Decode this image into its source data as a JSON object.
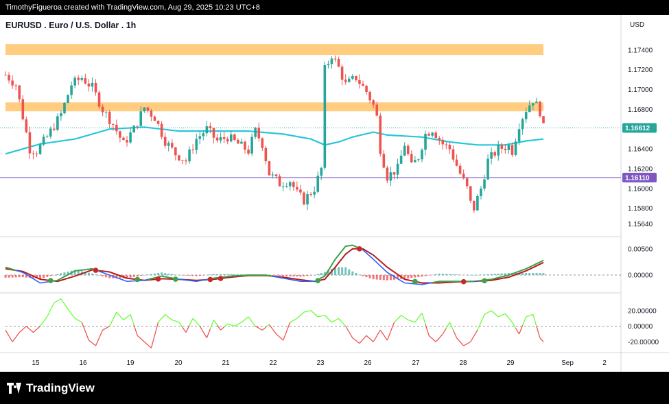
{
  "header": {
    "credit": "TimothyFigueroa created with TradingView.com, Aug 29, 2025 10:23 UTC+8"
  },
  "footer": {
    "brand": "TradingView"
  },
  "colors": {
    "up": "#26a69a",
    "down": "#ef5350",
    "ma": "#26c6da",
    "zone": "#ffcc80",
    "level": "#7e57c2",
    "macd_fast": "#2962ff",
    "macd_slow": "#b71c1c",
    "osc_up": "#66ff33",
    "osc_down": "#ef5350",
    "osc_line": "#43a047"
  },
  "chart_data": [
    {
      "type": "candlestick",
      "title": "EURUSD . Euro / U.S. Dollar . 1h",
      "currency_label": "USD",
      "ylim": [
        1.1552,
        1.176
      ],
      "y_ticks": [
        "1.17400",
        "1.17200",
        "1.17000",
        "1.16800",
        "1.16400",
        "1.16200",
        "1.16000",
        "1.15800",
        "1.15640"
      ],
      "last_price": "1.16612",
      "horizontal_level": "1.16110",
      "resistance_zones": [
        [
          1.1735,
          1.1746
        ],
        [
          1.1678,
          1.1687
        ]
      ],
      "x_labels": [
        "15",
        "16",
        "19",
        "20",
        "21",
        "22",
        "23",
        "26",
        "27",
        "28",
        "29",
        "Sep",
        "2"
      ],
      "close_path": [
        [
          0,
          1.1715
        ],
        [
          3,
          1.1705
        ],
        [
          7,
          1.164
        ],
        [
          9,
          1.1638
        ],
        [
          12,
          1.1652
        ],
        [
          16,
          1.1675
        ],
        [
          19,
          1.1705
        ],
        [
          22,
          1.1712
        ],
        [
          25,
          1.1702
        ],
        [
          28,
          1.168
        ],
        [
          31,
          1.1665
        ],
        [
          34,
          1.1645
        ],
        [
          37,
          1.166
        ],
        [
          40,
          1.1682
        ],
        [
          43,
          1.1672
        ],
        [
          46,
          1.1648
        ],
        [
          49,
          1.1635
        ],
        [
          52,
          1.1628
        ],
        [
          55,
          1.165
        ],
        [
          58,
          1.166
        ],
        [
          61,
          1.1648
        ],
        [
          64,
          1.1652
        ],
        [
          67,
          1.1645
        ],
        [
          70,
          1.1638
        ],
        [
          72,
          1.1658
        ],
        [
          74,
          1.1645
        ],
        [
          76,
          1.1615
        ],
        [
          79,
          1.1605
        ],
        [
          82,
          1.1608
        ],
        [
          84,
          1.1595
        ],
        [
          86,
          1.1588
        ],
        [
          89,
          1.16
        ],
        [
          91,
          1.162
        ],
        [
          92,
          1.172
        ],
        [
          94,
          1.1735
        ],
        [
          96,
          1.1722
        ],
        [
          98,
          1.1705
        ],
        [
          101,
          1.1712
        ],
        [
          104,
          1.1698
        ],
        [
          106,
          1.1684
        ],
        [
          107,
          1.1672
        ],
        [
          108,
          1.164
        ],
        [
          110,
          1.1612
        ],
        [
          113,
          1.162
        ],
        [
          115,
          1.1645
        ],
        [
          117,
          1.1622
        ],
        [
          119,
          1.1632
        ],
        [
          121,
          1.1655
        ],
        [
          123,
          1.166
        ],
        [
          126,
          1.1645
        ],
        [
          128,
          1.164
        ],
        [
          131,
          1.1615
        ],
        [
          133,
          1.16
        ],
        [
          134,
          1.1585
        ],
        [
          135,
          1.158
        ],
        [
          137,
          1.16
        ],
        [
          139,
          1.1628
        ],
        [
          142,
          1.164
        ],
        [
          145,
          1.1643
        ],
        [
          146,
          1.1638
        ],
        [
          148,
          1.1665
        ],
        [
          150,
          1.168
        ],
        [
          152,
          1.169
        ],
        [
          154,
          1.1678
        ],
        [
          155,
          1.1661
        ]
      ],
      "moving_average_path": [
        [
          0,
          1.1635
        ],
        [
          10,
          1.1645
        ],
        [
          20,
          1.165
        ],
        [
          30,
          1.166
        ],
        [
          40,
          1.1662
        ],
        [
          50,
          1.1658
        ],
        [
          60,
          1.1658
        ],
        [
          70,
          1.1658
        ],
        [
          80,
          1.1655
        ],
        [
          88,
          1.165
        ],
        [
          92,
          1.1644
        ],
        [
          96,
          1.1647
        ],
        [
          100,
          1.1652
        ],
        [
          106,
          1.1657
        ],
        [
          110,
          1.1654
        ],
        [
          120,
          1.1652
        ],
        [
          128,
          1.1647
        ],
        [
          136,
          1.1644
        ],
        [
          144,
          1.1644
        ],
        [
          150,
          1.1648
        ],
        [
          155,
          1.165
        ]
      ]
    },
    {
      "type": "macd",
      "ylim": [
        -0.003,
        0.0072
      ],
      "y_ticks": [
        "0.00500",
        "0.00000"
      ],
      "fast_line": [
        [
          0,
          0.0015
        ],
        [
          5,
          0.0005
        ],
        [
          10,
          -0.0015
        ],
        [
          15,
          -0.001
        ],
        [
          20,
          0.0008
        ],
        [
          25,
          0.0012
        ],
        [
          30,
          0.0
        ],
        [
          35,
          -0.0012
        ],
        [
          40,
          -0.001
        ],
        [
          45,
          -0.0002
        ],
        [
          50,
          -0.0008
        ],
        [
          55,
          -0.0012
        ],
        [
          60,
          -0.0006
        ],
        [
          65,
          -0.0002
        ],
        [
          70,
          0.0
        ],
        [
          75,
          0.0
        ],
        [
          80,
          -0.0006
        ],
        [
          85,
          -0.0012
        ],
        [
          89,
          -0.0012
        ],
        [
          92,
          -0.0002
        ],
        [
          95,
          0.003
        ],
        [
          98,
          0.0055
        ],
        [
          100,
          0.0057
        ],
        [
          103,
          0.0048
        ],
        [
          106,
          0.003
        ],
        [
          110,
          0.0005
        ],
        [
          115,
          -0.0015
        ],
        [
          120,
          -0.0018
        ],
        [
          125,
          -0.0012
        ],
        [
          130,
          -0.0012
        ],
        [
          135,
          -0.0012
        ],
        [
          140,
          -0.0008
        ],
        [
          145,
          0.0
        ],
        [
          150,
          0.0012
        ],
        [
          155,
          0.0028
        ]
      ],
      "slow_line": [
        [
          0,
          0.0012
        ],
        [
          5,
          0.0007
        ],
        [
          10,
          -0.0008
        ],
        [
          15,
          -0.0012
        ],
        [
          20,
          -0.0002
        ],
        [
          25,
          0.001
        ],
        [
          30,
          0.0006
        ],
        [
          35,
          -0.0006
        ],
        [
          40,
          -0.001
        ],
        [
          45,
          -0.0007
        ],
        [
          50,
          -0.0008
        ],
        [
          55,
          -0.001
        ],
        [
          60,
          -0.0008
        ],
        [
          65,
          -0.0004
        ],
        [
          70,
          -0.0001
        ],
        [
          75,
          -0.0001
        ],
        [
          80,
          -0.0004
        ],
        [
          85,
          -0.0009
        ],
        [
          89,
          -0.0012
        ],
        [
          92,
          -0.0008
        ],
        [
          95,
          0.0015
        ],
        [
          98,
          0.004
        ],
        [
          100,
          0.005
        ],
        [
          103,
          0.005
        ],
        [
          106,
          0.0038
        ],
        [
          110,
          0.0015
        ],
        [
          115,
          -0.0008
        ],
        [
          120,
          -0.0015
        ],
        [
          125,
          -0.0015
        ],
        [
          130,
          -0.0013
        ],
        [
          135,
          -0.0012
        ],
        [
          140,
          -0.001
        ],
        [
          145,
          -0.0004
        ],
        [
          150,
          0.0008
        ],
        [
          155,
          0.0024
        ]
      ],
      "histogram": [
        [
          0,
          -0.0005
        ],
        [
          5,
          -0.0004
        ],
        [
          10,
          -0.0007
        ],
        [
          15,
          0.0002
        ],
        [
          20,
          0.001
        ],
        [
          25,
          0.0003
        ],
        [
          30,
          -0.0006
        ],
        [
          35,
          -0.0006
        ],
        [
          40,
          0.0
        ],
        [
          45,
          0.0005
        ],
        [
          50,
          0.0
        ],
        [
          55,
          -0.0002
        ],
        [
          60,
          0.0002
        ],
        [
          65,
          0.0002
        ],
        [
          70,
          0.0001
        ],
        [
          75,
          0.0001
        ],
        [
          80,
          -0.0002
        ],
        [
          85,
          -0.0003
        ],
        [
          89,
          0.0
        ],
        [
          92,
          0.0006
        ],
        [
          95,
          0.0015
        ],
        [
          98,
          0.0015
        ],
        [
          100,
          0.0007
        ],
        [
          103,
          -0.0002
        ],
        [
          106,
          -0.0008
        ],
        [
          110,
          -0.001
        ],
        [
          115,
          -0.0007
        ],
        [
          120,
          -0.0003
        ],
        [
          125,
          0.0003
        ],
        [
          130,
          0.0001
        ],
        [
          135,
          0.0
        ],
        [
          140,
          0.0002
        ],
        [
          145,
          0.0004
        ],
        [
          150,
          0.0004
        ],
        [
          155,
          0.0004
        ]
      ],
      "cross_points": [
        {
          "x": 13,
          "kind": "bull"
        },
        {
          "x": 26,
          "kind": "bear"
        },
        {
          "x": 38,
          "kind": "bull"
        },
        {
          "x": 44,
          "kind": "bear"
        },
        {
          "x": 49,
          "kind": "bull"
        },
        {
          "x": 59,
          "kind": "bear"
        },
        {
          "x": 62,
          "kind": "bear"
        },
        {
          "x": 90,
          "kind": "bull"
        },
        {
          "x": 102,
          "kind": "bear"
        },
        {
          "x": 118,
          "kind": "bull"
        },
        {
          "x": 132,
          "kind": "bear"
        },
        {
          "x": 138,
          "kind": "bull"
        }
      ]
    },
    {
      "type": "oscillator",
      "ylim": [
        -32,
        40
      ],
      "y_ticks": [
        "20.00000",
        "0.00000",
        "-20.00000"
      ],
      "values": [
        [
          0,
          -5
        ],
        [
          2,
          -20
        ],
        [
          4,
          -8
        ],
        [
          6,
          0
        ],
        [
          8,
          -8
        ],
        [
          10,
          0
        ],
        [
          12,
          12
        ],
        [
          14,
          30
        ],
        [
          16,
          35
        ],
        [
          18,
          22
        ],
        [
          20,
          10
        ],
        [
          22,
          5
        ],
        [
          24,
          -18
        ],
        [
          26,
          -25
        ],
        [
          28,
          -5
        ],
        [
          30,
          0
        ],
        [
          32,
          18
        ],
        [
          34,
          8
        ],
        [
          36,
          15
        ],
        [
          38,
          -12
        ],
        [
          40,
          -20
        ],
        [
          42,
          -28
        ],
        [
          44,
          5
        ],
        [
          46,
          15
        ],
        [
          48,
          8
        ],
        [
          50,
          5
        ],
        [
          52,
          -8
        ],
        [
          54,
          10
        ],
        [
          56,
          0
        ],
        [
          58,
          -15
        ],
        [
          60,
          8
        ],
        [
          62,
          -5
        ],
        [
          64,
          3
        ],
        [
          66,
          0
        ],
        [
          68,
          5
        ],
        [
          70,
          12
        ],
        [
          72,
          0
        ],
        [
          74,
          -5
        ],
        [
          76,
          2
        ],
        [
          78,
          -10
        ],
        [
          80,
          -18
        ],
        [
          82,
          5
        ],
        [
          84,
          10
        ],
        [
          86,
          18
        ],
        [
          88,
          20
        ],
        [
          90,
          12
        ],
        [
          92,
          14
        ],
        [
          94,
          5
        ],
        [
          96,
          10
        ],
        [
          98,
          0
        ],
        [
          100,
          -15
        ],
        [
          102,
          -22
        ],
        [
          104,
          -12
        ],
        [
          106,
          -20
        ],
        [
          108,
          -5
        ],
        [
          110,
          -18
        ],
        [
          112,
          5
        ],
        [
          114,
          14
        ],
        [
          116,
          8
        ],
        [
          118,
          5
        ],
        [
          120,
          17
        ],
        [
          122,
          -12
        ],
        [
          124,
          -20
        ],
        [
          126,
          -10
        ],
        [
          128,
          5
        ],
        [
          130,
          -15
        ],
        [
          132,
          -25
        ],
        [
          134,
          -20
        ],
        [
          136,
          -5
        ],
        [
          138,
          15
        ],
        [
          140,
          20
        ],
        [
          142,
          12
        ],
        [
          144,
          16
        ],
        [
          146,
          5
        ],
        [
          148,
          -10
        ],
        [
          150,
          12
        ],
        [
          152,
          15
        ],
        [
          154,
          -15
        ],
        [
          155,
          -20
        ]
      ]
    }
  ]
}
